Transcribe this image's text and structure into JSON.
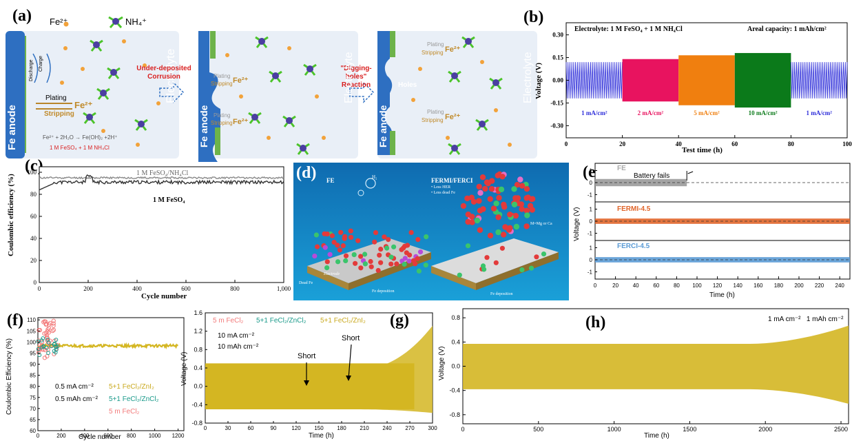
{
  "panels": {
    "a": {
      "label": "(a)",
      "legend_fe": "Fe²⁺",
      "legend_nh4": "NH₄⁺",
      "anode": "Fe anode",
      "electrolyte": "Electrolyte",
      "discharge": "Discharge",
      "charge": "Charge",
      "plating": "Plating",
      "stripping": "Stripping",
      "fe2plus": "Fe²⁺",
      "reaction": "Fe²⁺ + 2H₂O → Fe(OH)₂ +2H⁺",
      "electrolyte_formula": "1 M FeSO₄ + 1 M NH₄Cl",
      "step1": "Under-deposited Corrusion",
      "step2": "\"Digging-holes\" Reaction",
      "holes": "Holes"
    },
    "b": {
      "label": "(b)",
      "electrolyte": "Electrolyte: 1 M FeSO₄ +  1 M NH₄Cl",
      "areal": "Areal capacity: 1 mAh/cm²",
      "ylabel": "Voltage (V)",
      "xlabel": "Test time (h)",
      "yticks": [
        "0.30",
        "0.15",
        "0.00",
        "-0.15",
        "-0.30"
      ],
      "xticks": [
        "0",
        "20",
        "40",
        "60",
        "80",
        "100"
      ],
      "segments": [
        {
          "label": "1 mA/cm²",
          "color": "#2b2bd9"
        },
        {
          "label": "2 mA/cm²",
          "color": "#e8135f"
        },
        {
          "label": "5 mA/cm²",
          "color": "#f07f0f"
        },
        {
          "label": "10 mA/cm²",
          "color": "#0b7a1a"
        },
        {
          "label": "1 mA/cm²",
          "color": "#2b2bd9"
        }
      ]
    },
    "c": {
      "label": "(c)",
      "ylabel": "Coulombic efficiency (%)",
      "xlabel": "Cycle number",
      "series1": "1 M FeSO₄/NH₄Cl",
      "series2": "1 M FeSO₄",
      "yticks": [
        "100",
        "80",
        "60",
        "40",
        "20",
        "0"
      ],
      "xticks": [
        "0",
        "200",
        "400",
        "600",
        "800",
        "1,000"
      ]
    },
    "d": {
      "label": "(d)",
      "fe": "FE",
      "h2": "H₂",
      "fermi": "FERMI/FERCI",
      "bullet1": "• Less HER",
      "bullet2": "• Less dead Fe",
      "mg": "M=Mg or Ca",
      "dead_fe": "Dead Fe",
      "electrode": "Electrode",
      "fe_dep1": "Fe deposition",
      "fe_dep2": "Fe deposition"
    },
    "e": {
      "label": "(e)",
      "ylabel": "Voltage (V)",
      "xlabel": "Time (h)",
      "fe": "FE",
      "fails": "Battery fails",
      "fermi": "FERMI-4.5",
      "ferci": "FERCI-4.5",
      "xticks": [
        "0",
        "20",
        "40",
        "60",
        "80",
        "100",
        "120",
        "140",
        "160",
        "180",
        "200",
        "220",
        "240"
      ]
    },
    "f": {
      "label": "(f)",
      "ylabel": "Coulombic Efficiency (%)",
      "xlabel": "Cycle number",
      "cond1": "0.5 mA cm⁻²",
      "cond2": "0.5 mAh cm⁻²",
      "s1": "5+1 FeCl₂/ZnI₂",
      "s2": "5+1 FeCl₂/ZnCl₂",
      "s3": "5 m FeCl₂",
      "yticks": [
        "110",
        "105",
        "100",
        "95",
        "90",
        "85",
        "80",
        "75",
        "70",
        "65",
        "60"
      ],
      "xticks": [
        "0",
        "200",
        "400",
        "600",
        "800",
        "1000",
        "1200"
      ]
    },
    "g": {
      "label": "(g)",
      "ylabel": "Voltage (V)",
      "xlabel": "Time (h)",
      "l1": "5 m FeCl₂",
      "l2": "5+1 FeCl₂/ZnCl₂",
      "l3": "5+1 FeCl₂/ZnI₂",
      "cond1": "10 mA cm⁻²",
      "cond2": "10 mAh cm⁻²",
      "short1": "Short",
      "short2": "Short",
      "yticks": [
        "1.6",
        "1.2",
        "0.8",
        "0.4",
        "0.0",
        "-0.4",
        "-0.8"
      ],
      "xticks": [
        "0",
        "30",
        "60",
        "90",
        "120",
        "150",
        "180",
        "210",
        "240",
        "270",
        "300"
      ]
    },
    "h": {
      "label": "(h)",
      "ylabel": "Voltage (V)",
      "xlabel": "Time (h)",
      "cond": "1 mA cm⁻²   1 mAh cm⁻²",
      "yticks": [
        "0.8",
        "0.4",
        "0.0",
        "-0.4",
        "-0.8"
      ],
      "xticks": [
        "0",
        "500",
        "1000",
        "1500",
        "2000",
        "2500"
      ]
    }
  },
  "colors": {
    "fe2": "#f2a23a",
    "nh4_center": "#4a3fa0",
    "nh4_arm": "#4cc42a",
    "fe_text": "#c08a2a",
    "red_text": "#d92020",
    "blue_1": "#2b2bd9",
    "pink": "#e8135f",
    "orange": "#f07f0f",
    "green": "#0b7a1a",
    "gold": "#d4b622",
    "salmon": "#f27a7a",
    "teal": "#1a9a8a",
    "grey": "#9a9a9a",
    "fermi_orange": "#e0652a",
    "ferci_blue": "#5b9bd5"
  }
}
